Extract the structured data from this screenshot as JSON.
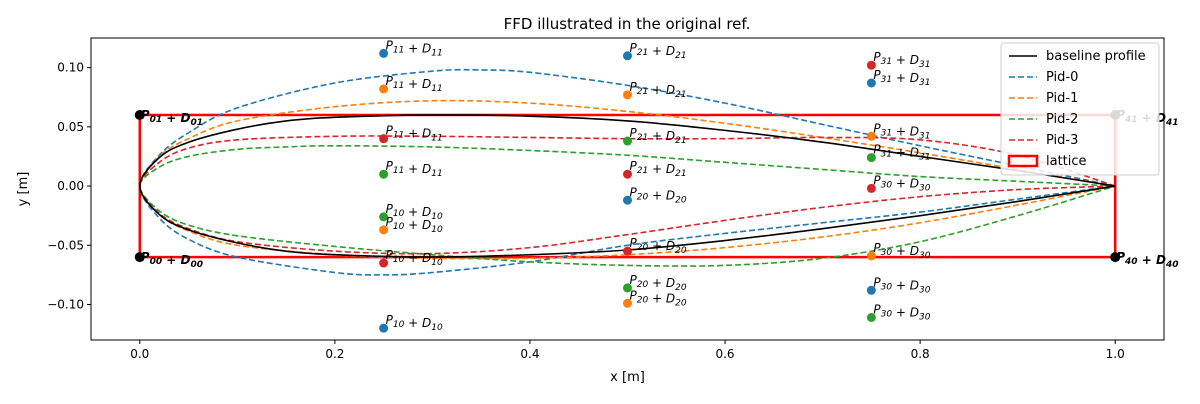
{
  "chart_data": {
    "type": "line",
    "title": "FFD illustrated in the original ref.",
    "xlabel": "x [m]",
    "ylabel": "y [m]",
    "xlim": [
      -0.05,
      1.05
    ],
    "ylim": [
      -0.13,
      0.125
    ],
    "xticks": [
      0.0,
      0.2,
      0.4,
      0.6,
      0.8,
      1.0
    ],
    "xtick_labels": [
      "0.0",
      "0.2",
      "0.4",
      "0.6",
      "0.8",
      "1.0"
    ],
    "yticks": [
      -0.1,
      -0.05,
      0.0,
      0.05,
      0.1
    ],
    "ytick_labels": [
      "−0.10",
      "−0.05",
      "0.00",
      "0.05",
      "0.10"
    ],
    "grid": false,
    "legend_position": "top-right",
    "colors": {
      "baseline": "#000000",
      "pid0": "#1f77b4",
      "pid1": "#ff7f0e",
      "pid2": "#2ca02c",
      "pid3": "#d62728",
      "lattice": "#ff0000",
      "corner_node": "#000000"
    },
    "legend": [
      {
        "label": "baseline profile",
        "color": "#000000",
        "style": "solid"
      },
      {
        "label": "Pid-0",
        "color": "#1f77b4",
        "style": "dashed"
      },
      {
        "label": "Pid-1",
        "color": "#ff7f0e",
        "style": "dashed"
      },
      {
        "label": "Pid-2",
        "color": "#2ca02c",
        "style": "dashed"
      },
      {
        "label": "Pid-3",
        "color": "#d62728",
        "style": "dashed"
      },
      {
        "label": "lattice",
        "color": "#ff0000",
        "style": "box"
      }
    ],
    "lattice": {
      "x": [
        0.0,
        1.0
      ],
      "y": [
        -0.06,
        0.06
      ]
    },
    "profiles": [
      {
        "id": "baseline",
        "color": "#000000",
        "dashed": false,
        "upper": [
          [
            0,
            0
          ],
          [
            0.02,
            0.024
          ],
          [
            0.05,
            0.037
          ],
          [
            0.1,
            0.048
          ],
          [
            0.15,
            0.055
          ],
          [
            0.2,
            0.058
          ],
          [
            0.3,
            0.06
          ],
          [
            0.4,
            0.059
          ],
          [
            0.5,
            0.055
          ],
          [
            0.6,
            0.047
          ],
          [
            0.7,
            0.037
          ],
          [
            0.8,
            0.025
          ],
          [
            0.9,
            0.013
          ],
          [
            1.0,
            0.0
          ]
        ],
        "lower": [
          [
            0,
            0
          ],
          [
            0.02,
            -0.024
          ],
          [
            0.05,
            -0.037
          ],
          [
            0.1,
            -0.048
          ],
          [
            0.15,
            -0.055
          ],
          [
            0.2,
            -0.058
          ],
          [
            0.3,
            -0.06
          ],
          [
            0.4,
            -0.058
          ],
          [
            0.5,
            -0.054
          ],
          [
            0.6,
            -0.046
          ],
          [
            0.7,
            -0.036
          ],
          [
            0.8,
            -0.025
          ],
          [
            0.9,
            -0.013
          ],
          [
            1.0,
            0.0
          ]
        ]
      },
      {
        "id": "pid0",
        "color": "#1f77b4",
        "dashed": true,
        "upper": [
          [
            0,
            0
          ],
          [
            0.02,
            0.026
          ],
          [
            0.05,
            0.045
          ],
          [
            0.1,
            0.066
          ],
          [
            0.2,
            0.087
          ],
          [
            0.3,
            0.097
          ],
          [
            0.35,
            0.098
          ],
          [
            0.4,
            0.096
          ],
          [
            0.5,
            0.085
          ],
          [
            0.6,
            0.07
          ],
          [
            0.7,
            0.052
          ],
          [
            0.8,
            0.034
          ],
          [
            0.9,
            0.017
          ],
          [
            1.0,
            0.0
          ]
        ],
        "lower": [
          [
            0,
            0
          ],
          [
            0.02,
            -0.027
          ],
          [
            0.05,
            -0.045
          ],
          [
            0.1,
            -0.06
          ],
          [
            0.2,
            -0.073
          ],
          [
            0.25,
            -0.075
          ],
          [
            0.3,
            -0.073
          ],
          [
            0.4,
            -0.064
          ],
          [
            0.5,
            -0.05
          ],
          [
            0.6,
            -0.04
          ],
          [
            0.7,
            -0.031
          ],
          [
            0.8,
            -0.022
          ],
          [
            0.9,
            -0.011
          ],
          [
            1.0,
            0.0
          ]
        ]
      },
      {
        "id": "pid1",
        "color": "#ff7f0e",
        "dashed": true,
        "upper": [
          [
            0,
            0
          ],
          [
            0.02,
            0.025
          ],
          [
            0.05,
            0.04
          ],
          [
            0.1,
            0.055
          ],
          [
            0.2,
            0.067
          ],
          [
            0.3,
            0.072
          ],
          [
            0.4,
            0.07
          ],
          [
            0.5,
            0.063
          ],
          [
            0.6,
            0.053
          ],
          [
            0.7,
            0.041
          ],
          [
            0.8,
            0.028
          ],
          [
            0.9,
            0.014
          ],
          [
            1.0,
            0.0
          ]
        ],
        "lower": [
          [
            0,
            0
          ],
          [
            0.02,
            -0.024
          ],
          [
            0.05,
            -0.038
          ],
          [
            0.1,
            -0.05
          ],
          [
            0.2,
            -0.058
          ],
          [
            0.3,
            -0.061
          ],
          [
            0.4,
            -0.061
          ],
          [
            0.5,
            -0.058
          ],
          [
            0.6,
            -0.052
          ],
          [
            0.7,
            -0.043
          ],
          [
            0.8,
            -0.031
          ],
          [
            0.9,
            -0.016
          ],
          [
            1.0,
            0.0
          ]
        ]
      },
      {
        "id": "pid2",
        "color": "#2ca02c",
        "dashed": true,
        "upper": [
          [
            0,
            0
          ],
          [
            0.02,
            0.016
          ],
          [
            0.05,
            0.025
          ],
          [
            0.1,
            0.031
          ],
          [
            0.15,
            0.033
          ],
          [
            0.2,
            0.034
          ],
          [
            0.3,
            0.033
          ],
          [
            0.4,
            0.03
          ],
          [
            0.5,
            0.026
          ],
          [
            0.6,
            0.02
          ],
          [
            0.7,
            0.014
          ],
          [
            0.8,
            0.008
          ],
          [
            0.9,
            0.004
          ],
          [
            1.0,
            0.0
          ]
        ],
        "lower": [
          [
            0,
            0
          ],
          [
            0.02,
            -0.021
          ],
          [
            0.05,
            -0.033
          ],
          [
            0.1,
            -0.042
          ],
          [
            0.2,
            -0.051
          ],
          [
            0.3,
            -0.058
          ],
          [
            0.4,
            -0.064
          ],
          [
            0.5,
            -0.067
          ],
          [
            0.6,
            -0.067
          ],
          [
            0.7,
            -0.061
          ],
          [
            0.8,
            -0.047
          ],
          [
            0.9,
            -0.025
          ],
          [
            1.0,
            0.0
          ]
        ]
      },
      {
        "id": "pid3",
        "color": "#d62728",
        "dashed": true,
        "upper": [
          [
            0,
            0
          ],
          [
            0.02,
            0.02
          ],
          [
            0.05,
            0.032
          ],
          [
            0.1,
            0.039
          ],
          [
            0.2,
            0.042
          ],
          [
            0.3,
            0.042
          ],
          [
            0.4,
            0.041
          ],
          [
            0.5,
            0.04
          ],
          [
            0.6,
            0.04
          ],
          [
            0.7,
            0.041
          ],
          [
            0.8,
            0.039
          ],
          [
            0.9,
            0.026
          ],
          [
            1.0,
            0.0
          ]
        ],
        "lower": [
          [
            0,
            0
          ],
          [
            0.02,
            -0.023
          ],
          [
            0.05,
            -0.036
          ],
          [
            0.1,
            -0.047
          ],
          [
            0.2,
            -0.055
          ],
          [
            0.3,
            -0.057
          ],
          [
            0.4,
            -0.052
          ],
          [
            0.5,
            -0.041
          ],
          [
            0.6,
            -0.029
          ],
          [
            0.7,
            -0.018
          ],
          [
            0.8,
            -0.009
          ],
          [
            0.9,
            -0.003
          ],
          [
            1.0,
            0.0
          ]
        ]
      }
    ],
    "corner_points": [
      {
        "x": 0.0,
        "y": 0.06,
        "label": "P01 + D01"
      },
      {
        "x": 0.0,
        "y": -0.06,
        "label": "P00 + D00"
      },
      {
        "x": 1.0,
        "y": 0.06,
        "label": "P41 + D41"
      },
      {
        "x": 1.0,
        "y": -0.06,
        "label": "P40 + D40"
      }
    ],
    "control_points": [
      {
        "x": 0.25,
        "y": 0.112,
        "series": "pid0",
        "label": "P11 + D11"
      },
      {
        "x": 0.25,
        "y": 0.082,
        "series": "pid1",
        "label": "P11 + D11"
      },
      {
        "x": 0.25,
        "y": 0.04,
        "series": "pid3",
        "label": "P11 + D11"
      },
      {
        "x": 0.25,
        "y": 0.01,
        "series": "pid2",
        "label": "P11 + D11"
      },
      {
        "x": 0.25,
        "y": -0.026,
        "series": "pid2",
        "label": "P10 + D10"
      },
      {
        "x": 0.25,
        "y": -0.037,
        "series": "pid1",
        "label": "P10 + D10"
      },
      {
        "x": 0.25,
        "y": -0.065,
        "series": "pid3",
        "label": "P10 + D10"
      },
      {
        "x": 0.25,
        "y": -0.12,
        "series": "pid0",
        "label": "P10 + D10"
      },
      {
        "x": 0.5,
        "y": 0.11,
        "series": "pid0",
        "label": "P21 + D21"
      },
      {
        "x": 0.5,
        "y": 0.077,
        "series": "pid1",
        "label": "P21 + D21"
      },
      {
        "x": 0.5,
        "y": 0.038,
        "series": "pid2",
        "label": "P21 + D21"
      },
      {
        "x": 0.5,
        "y": 0.01,
        "series": "pid3",
        "label": "P21 + D21"
      },
      {
        "x": 0.5,
        "y": -0.012,
        "series": "pid0",
        "label": "P20 + D20"
      },
      {
        "x": 0.5,
        "y": -0.055,
        "series": "pid3",
        "label": "P20 + D20"
      },
      {
        "x": 0.5,
        "y": -0.086,
        "series": "pid2",
        "label": "P20 + D20"
      },
      {
        "x": 0.5,
        "y": -0.099,
        "series": "pid1",
        "label": "P20 + D20"
      },
      {
        "x": 0.75,
        "y": 0.102,
        "series": "pid3",
        "label": "P31 + D31"
      },
      {
        "x": 0.75,
        "y": 0.087,
        "series": "pid0",
        "label": "P31 + D31"
      },
      {
        "x": 0.75,
        "y": 0.042,
        "series": "pid1",
        "label": "P31 + D31"
      },
      {
        "x": 0.75,
        "y": 0.024,
        "series": "pid2",
        "label": "P31 + D31"
      },
      {
        "x": 0.75,
        "y": -0.002,
        "series": "pid3",
        "label": "P30 + D30"
      },
      {
        "x": 0.75,
        "y": -0.059,
        "series": "pid1",
        "label": "P30 + D30"
      },
      {
        "x": 0.75,
        "y": -0.088,
        "series": "pid0",
        "label": "P30 + D30"
      },
      {
        "x": 0.75,
        "y": -0.111,
        "series": "pid2",
        "label": "P30 + D30"
      }
    ]
  }
}
